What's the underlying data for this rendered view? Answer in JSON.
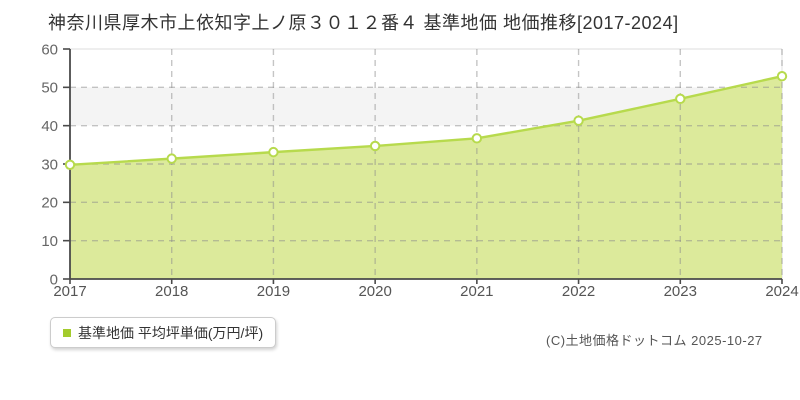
{
  "title": "神奈川県厚木市上依知字上ノ原３０１２番４ 基準地価 地価推移[2017-2024]",
  "legend": {
    "label": "基準地価 平均坪単価(万円/坪)",
    "marker_color": "#a3cb2d"
  },
  "footer": {
    "copyright": "(C)土地価格ドットコム 2025-10-27"
  },
  "chart_data": {
    "type": "area",
    "title": "神奈川県厚木市上依知字上ノ原３０１２番４ 基準地価 地価推移[2017-2024]",
    "x": [
      "2017",
      "2018",
      "2019",
      "2020",
      "2021",
      "2022",
      "2023",
      "2024"
    ],
    "series": [
      {
        "name": "基準地価 平均坪単価(万円/坪)",
        "values": [
          29.8,
          31.4,
          33.1,
          34.7,
          36.7,
          41.3,
          47.0,
          52.9
        ]
      }
    ],
    "xlabel": "",
    "ylabel": "",
    "ylim": [
      0,
      60
    ],
    "yticks": [
      0,
      10,
      20,
      30,
      40,
      50,
      60
    ],
    "grid": "dashed",
    "grid_bands": "alternating horizontal white / light-gray",
    "legend_position": "bottom-left",
    "colors": {
      "line": "#b7da4d",
      "fill": "#dcea9b",
      "marker": "#ffffff",
      "band": "#f4f4f4",
      "grid": "#cccccc",
      "axis": "#4a4a4a",
      "tick_label": "#666666"
    }
  }
}
